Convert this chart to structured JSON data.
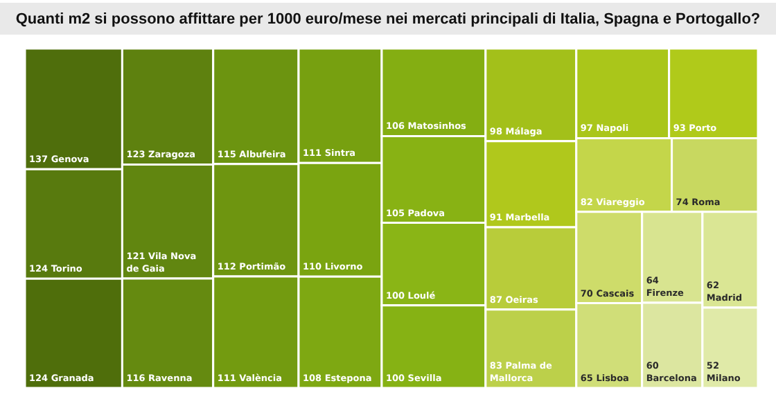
{
  "chart_data": {
    "type": "other",
    "data_labels": true,
    "title": "Quanti m2 si possono affittare per 1000 euro/mese nei mercati principali di Italia, Spagna e Portogallo?",
    "categories": [
      "Genova",
      "Torino",
      "Granada",
      "Zaragoza",
      "Vila Nova de Gaia",
      "Ravenna",
      "Albufeira",
      "Portimão",
      "València",
      "Sintra",
      "Livorno",
      "Estepona",
      "Matosinhos",
      "Padova",
      "Loulé",
      "Sevilla",
      "Málaga",
      "Marbella",
      "Oeiras",
      "Palma de Mallorca",
      "Napoli",
      "Porto",
      "Viareggio",
      "Roma",
      "Cascais",
      "Lisboa",
      "Firenze",
      "Barcelona",
      "Madrid",
      "Milano"
    ],
    "values": [
      137,
      124,
      124,
      123,
      121,
      116,
      115,
      112,
      111,
      111,
      110,
      108,
      106,
      105,
      100,
      100,
      98,
      91,
      87,
      83,
      97,
      93,
      82,
      74,
      70,
      65,
      64,
      60,
      62,
      52
    ],
    "colors": [
      "#4f6e0c",
      "#587a0e",
      "#4f6e0b",
      "#5e810f",
      "#618610",
      "#658a10",
      "#6c9410",
      "#6e9510",
      "#739b10",
      "#77a010",
      "#7aa410",
      "#7ea812",
      "#84ae12",
      "#88b214",
      "#8ab516",
      "#86b214",
      "#a3c01a",
      "#b0c81c",
      "#b8cc3a",
      "#bcd04a",
      "#aac61a",
      "#b0ca1a",
      "#c4d64a",
      "#c8d860",
      "#cedc6a",
      "#d0de78",
      "#d8e490",
      "#dce6a0",
      "#dae694",
      "#e0eaa8"
    ]
  }
}
